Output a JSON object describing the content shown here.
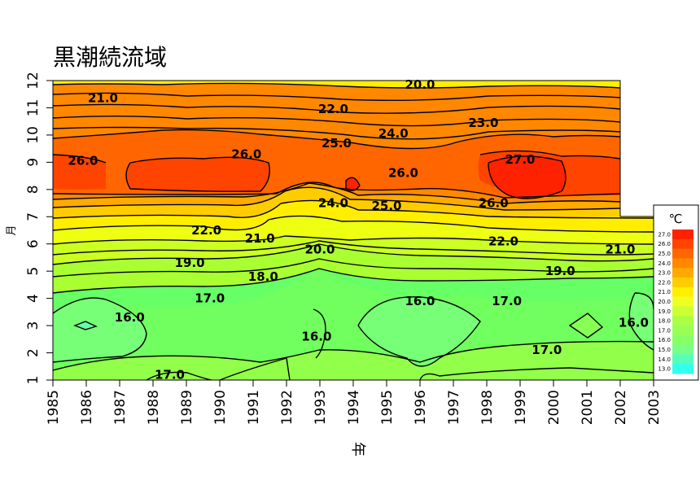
{
  "chart_data": {
    "type": "heatmap",
    "title": "黒潮続流域",
    "xlabel": "年",
    "ylabel": "月",
    "xlim": [
      1985,
      2003
    ],
    "ylim": [
      1,
      12
    ],
    "x_ticks": [
      "1985",
      "1986",
      "1987",
      "1988",
      "1989",
      "1990",
      "1991",
      "1992",
      "1993",
      "1994",
      "1995",
      "1996",
      "1997",
      "1998",
      "1999",
      "2000",
      "2001",
      "2002",
      "2003"
    ],
    "y_ticks": [
      "1",
      "2",
      "3",
      "4",
      "5",
      "6",
      "7",
      "8",
      "9",
      "10",
      "11",
      "12"
    ],
    "legend": {
      "unit": "℃",
      "placement": "right",
      "levels": [
        "27.0",
        "26.0",
        "25.0",
        "24.0",
        "23.0",
        "22.0",
        "21.0",
        "20.0",
        "19.0",
        "18.0",
        "17.0",
        "16.0",
        "15.0",
        "14.0",
        "13.0"
      ],
      "colors": [
        "#ff2200",
        "#ff4400",
        "#ff6600",
        "#ff8800",
        "#ffaa00",
        "#ffcc00",
        "#ffee00",
        "#eeff22",
        "#ccff33",
        "#aaff44",
        "#99ff55",
        "#88ff66",
        "#77ff88",
        "#55ffbb",
        "#33ffee"
      ]
    },
    "contour_labels": [
      {
        "text": "20.0",
        "x": 1996.0,
        "y": 11.85
      },
      {
        "text": "21.0",
        "x": 1986.5,
        "y": 11.35
      },
      {
        "text": "22.0",
        "x": 1993.4,
        "y": 10.95
      },
      {
        "text": "23.0",
        "x": 1997.9,
        "y": 10.45
      },
      {
        "text": "24.0",
        "x": 1995.2,
        "y": 10.05
      },
      {
        "text": "25.0",
        "x": 1993.5,
        "y": 9.7
      },
      {
        "text": "26.0",
        "x": 1985.9,
        "y": 9.05
      },
      {
        "text": "26.0",
        "x": 1990.8,
        "y": 9.3
      },
      {
        "text": "27.0",
        "x": 1999.0,
        "y": 9.1
      },
      {
        "text": "26.0",
        "x": 1995.5,
        "y": 8.6
      },
      {
        "text": "24.0",
        "x": 1993.4,
        "y": 7.5
      },
      {
        "text": "25.0",
        "x": 1995.0,
        "y": 7.4
      },
      {
        "text": "26.0",
        "x": 1998.2,
        "y": 7.5
      },
      {
        "text": "22.0",
        "x": 1989.6,
        "y": 6.5
      },
      {
        "text": "21.0",
        "x": 1991.2,
        "y": 6.2
      },
      {
        "text": "22.0",
        "x": 1998.5,
        "y": 6.1
      },
      {
        "text": "21.0",
        "x": 2002.0,
        "y": 5.8
      },
      {
        "text": "20.0",
        "x": 1993.0,
        "y": 5.8
      },
      {
        "text": "19.0",
        "x": 1989.1,
        "y": 5.3
      },
      {
        "text": "19.0",
        "x": 2000.2,
        "y": 5.0
      },
      {
        "text": "18.0",
        "x": 1991.3,
        "y": 4.8
      },
      {
        "text": "17.0",
        "x": 1989.7,
        "y": 4.0
      },
      {
        "text": "17.0",
        "x": 1998.6,
        "y": 3.9
      },
      {
        "text": "16.0",
        "x": 1987.3,
        "y": 3.3
      },
      {
        "text": "16.0",
        "x": 1996.0,
        "y": 3.9
      },
      {
        "text": "16.0",
        "x": 1992.9,
        "y": 2.6
      },
      {
        "text": "16.0",
        "x": 2002.4,
        "y": 3.1
      },
      {
        "text": "17.0",
        "x": 1999.8,
        "y": 2.1
      },
      {
        "text": "17.0",
        "x": 1988.5,
        "y": 1.2
      }
    ]
  }
}
